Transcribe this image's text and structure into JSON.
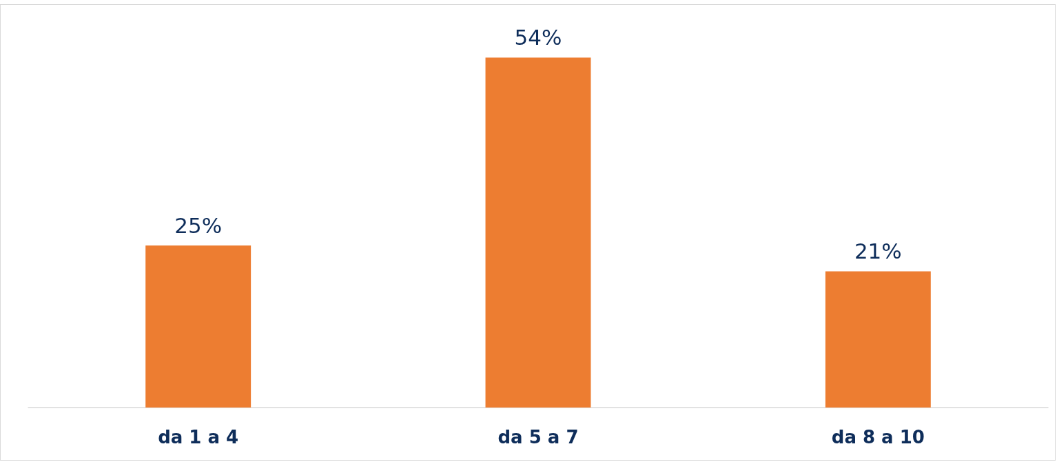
{
  "chart_data": {
    "type": "bar",
    "categories": [
      "da 1 a 4",
      "da 5 a 7",
      "da 8 a 10"
    ],
    "values": [
      25,
      54,
      21
    ],
    "color": "#ed7d31",
    "value_labels": [
      "25%",
      "54%",
      "21%"
    ]
  }
}
